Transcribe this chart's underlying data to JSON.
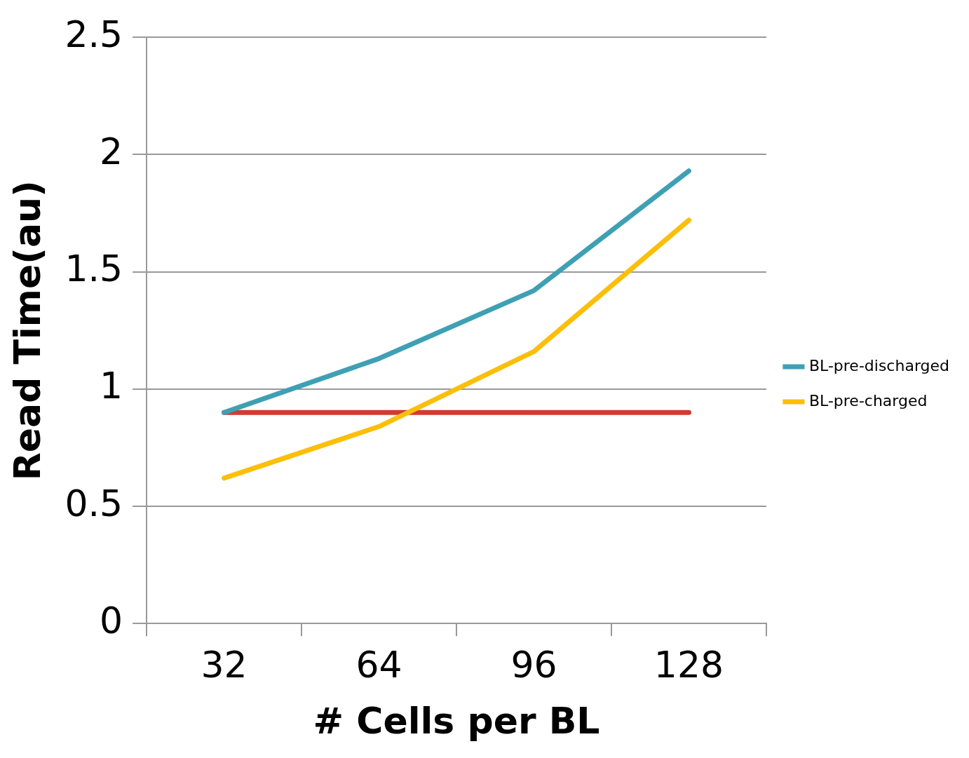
{
  "chart_data": {
    "type": "line",
    "xlabel": "# Cells per BL",
    "ylabel": "Read Time(au)",
    "categories": [
      "32",
      "64",
      "96",
      "128"
    ],
    "series": [
      {
        "name": "BL-pre-discharged",
        "color": "#3fa0b4",
        "values": [
          0.9,
          1.13,
          1.42,
          1.93
        ]
      },
      {
        "name": "BL-pre-charged",
        "color": "#fbbf0a",
        "values": [
          0.62,
          0.84,
          1.16,
          1.72
        ]
      },
      {
        "color": "#d13b30",
        "values": [
          0.9,
          0.9,
          0.9,
          0.9
        ]
      }
    ],
    "ylim": [
      0,
      2.5
    ],
    "yticks": [
      0,
      0.5,
      1,
      1.5,
      2,
      2.5
    ],
    "grid": "y",
    "legend": "right",
    "marker": "none",
    "line_style": "solid"
  }
}
